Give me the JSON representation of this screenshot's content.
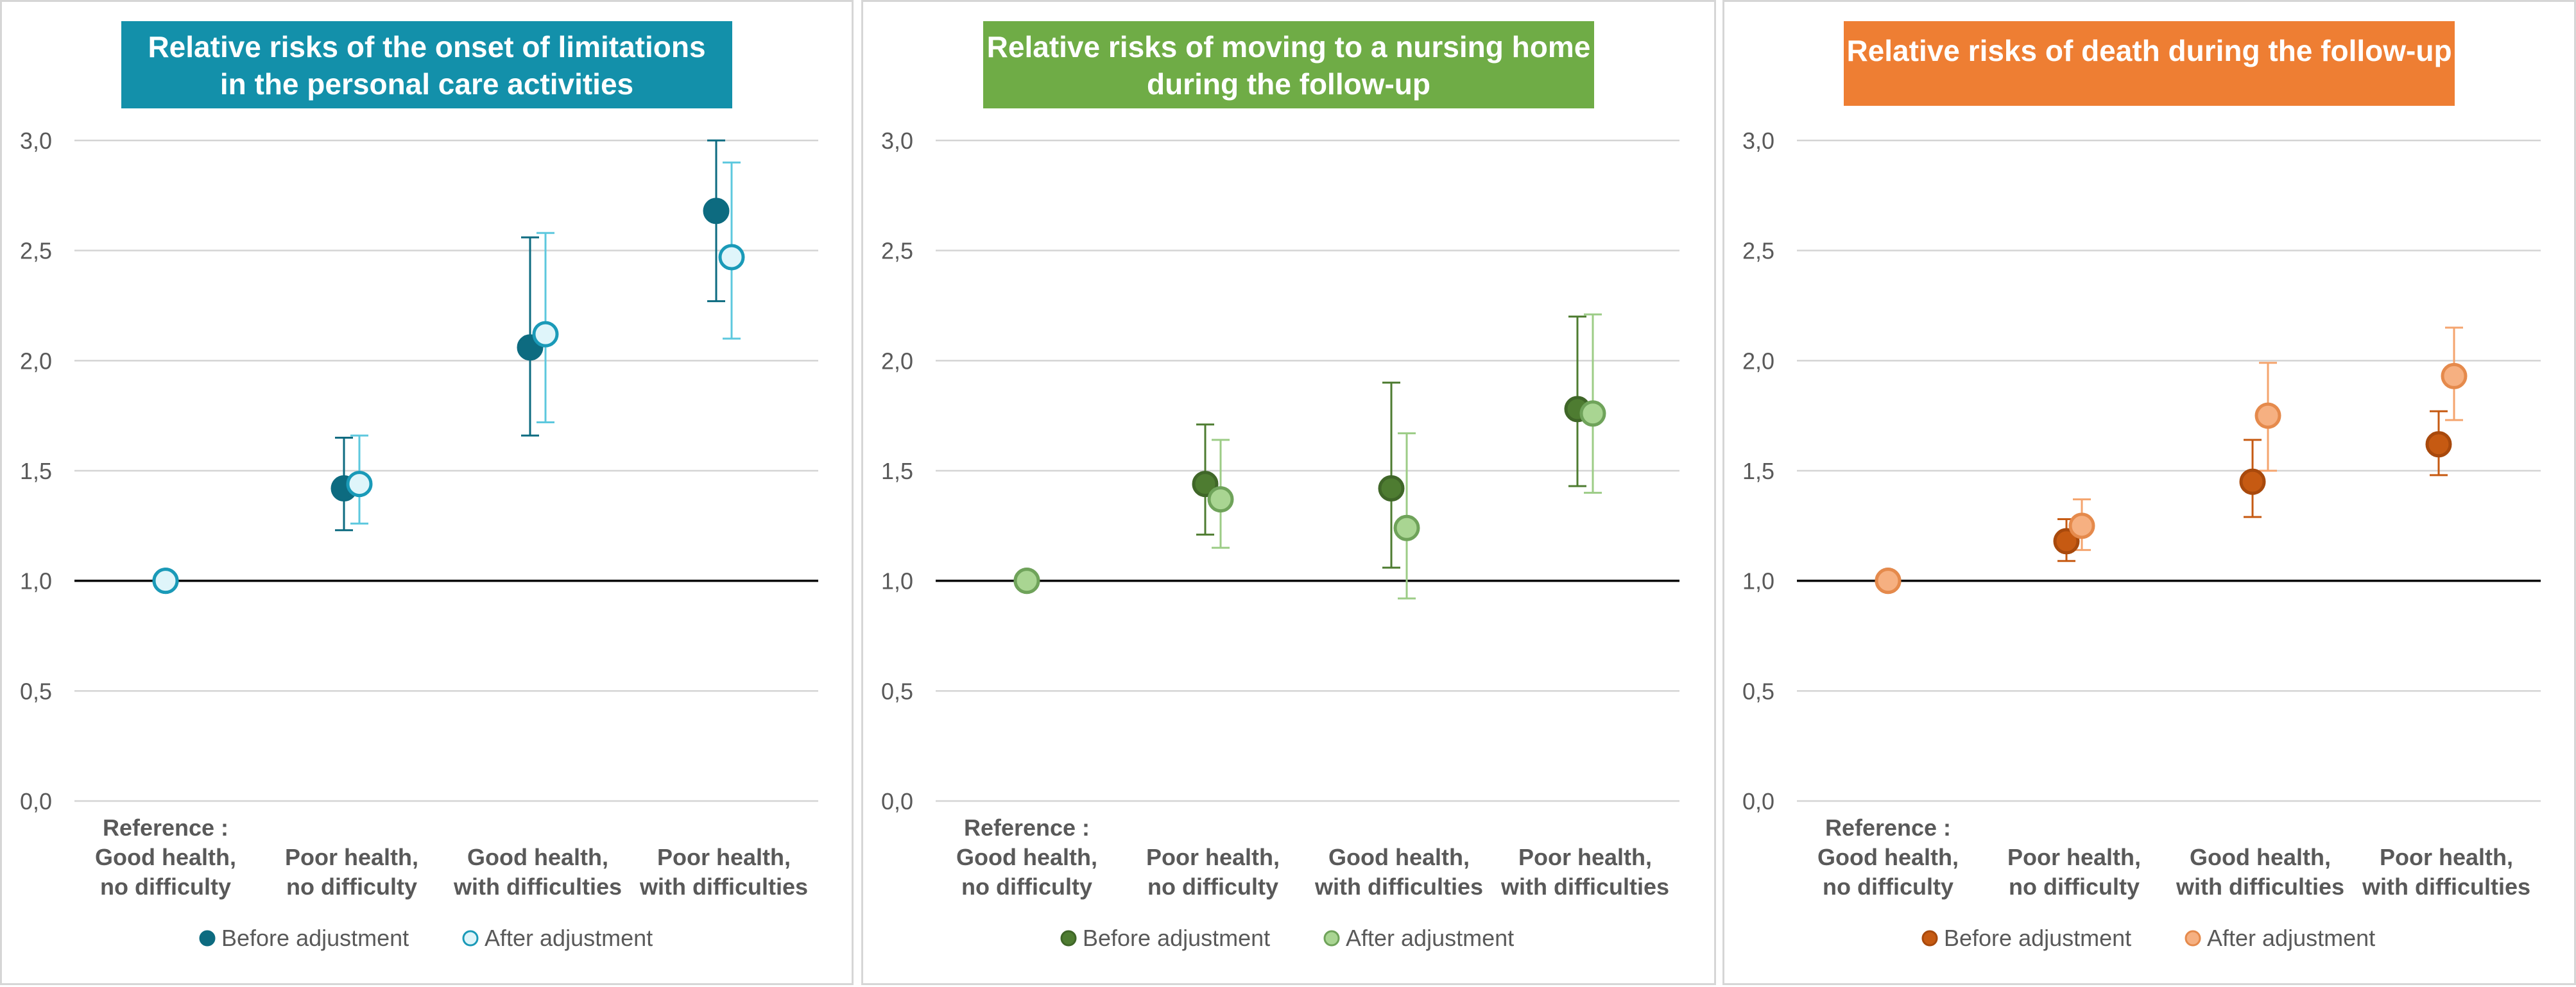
{
  "chart_data": [
    {
      "type": "scatter",
      "title_lines": [
        "Relative risks of the onset of limitations",
        "in the personal care activities"
      ],
      "title_bg": "#1390aa",
      "categories": [
        [
          "Reference :",
          "Good health,",
          "no difficulty"
        ],
        [
          "Poor health,",
          "no difficulty"
        ],
        [
          "Good health,",
          "with difficulties"
        ],
        [
          "Poor health,",
          "with difficulties"
        ]
      ],
      "y_ticks": [
        "0,0",
        "0,5",
        "1,0",
        "1,5",
        "2,0",
        "2,5",
        "3,0"
      ],
      "ylim": [
        0,
        3
      ],
      "reference_line": 1.0,
      "series": [
        {
          "name": "Before adjustment",
          "color": "#0d6b80",
          "fill": "#0d6b80",
          "stroke": "#0d6b80",
          "values": [
            1.0,
            1.42,
            2.06,
            2.68
          ],
          "lower": [
            null,
            1.23,
            1.66,
            2.27
          ],
          "upper": [
            null,
            1.65,
            2.56,
            3.0
          ]
        },
        {
          "name": "After adjustment",
          "color": "#5dc8de",
          "fill": "#dff5fa",
          "stroke": "#1a9ab8",
          "values": [
            1.0,
            1.44,
            2.12,
            2.47
          ],
          "lower": [
            null,
            1.26,
            1.72,
            2.1
          ],
          "upper": [
            null,
            1.66,
            2.58,
            2.9
          ]
        }
      ]
    },
    {
      "type": "scatter",
      "title_lines": [
        "Relative risks of moving to a nursing home",
        "during the follow-up"
      ],
      "title_bg": "#6fac46",
      "categories": [
        [
          "Reference :",
          "Good health,",
          "no difficulty"
        ],
        [
          "Poor health,",
          "no difficulty"
        ],
        [
          "Good health,",
          "with difficulties"
        ],
        [
          "Poor health,",
          "with difficulties"
        ]
      ],
      "y_ticks": [
        "0,0",
        "0,5",
        "1,0",
        "1,5",
        "2,0",
        "2,5",
        "3,0"
      ],
      "ylim": [
        0,
        3
      ],
      "reference_line": 1.0,
      "series": [
        {
          "name": "Before adjustment",
          "color": "#4e7c31",
          "fill": "#4e7c31",
          "stroke": "#3f6628",
          "values": [
            1.0,
            1.44,
            1.42,
            1.78
          ],
          "lower": [
            null,
            1.21,
            1.06,
            1.43
          ],
          "upper": [
            null,
            1.71,
            1.9,
            2.2
          ]
        },
        {
          "name": "After adjustment",
          "color": "#9ccc86",
          "fill": "#a9d592",
          "stroke": "#6fa35a",
          "values": [
            1.0,
            1.37,
            1.24,
            1.76
          ],
          "lower": [
            null,
            1.15,
            0.92,
            1.4
          ],
          "upper": [
            null,
            1.64,
            1.67,
            2.21
          ]
        }
      ]
    },
    {
      "type": "scatter",
      "title_lines": [
        "Relative risks of death during the follow-up"
      ],
      "title_bg": "#ee7e33",
      "categories": [
        [
          "Reference :",
          "Good health,",
          "no difficulty"
        ],
        [
          "Poor health,",
          "no difficulty"
        ],
        [
          "Good health,",
          "with difficulties"
        ],
        [
          "Poor health,",
          "with difficulties"
        ]
      ],
      "y_ticks": [
        "0,0",
        "0,5",
        "1,0",
        "1,5",
        "2,0",
        "2,5",
        "3,0"
      ],
      "ylim": [
        0,
        3
      ],
      "reference_line": 1.0,
      "series": [
        {
          "name": "Before adjustment",
          "color": "#c65a12",
          "fill": "#c65a12",
          "stroke": "#a8490c",
          "values": [
            1.0,
            1.18,
            1.45,
            1.62
          ],
          "lower": [
            null,
            1.09,
            1.29,
            1.48
          ],
          "upper": [
            null,
            1.28,
            1.64,
            1.77
          ]
        },
        {
          "name": "After adjustment",
          "color": "#f4a46e",
          "fill": "#f6b081",
          "stroke": "#e58a4c",
          "values": [
            1.0,
            1.25,
            1.75,
            1.93
          ],
          "lower": [
            null,
            1.14,
            1.5,
            1.73
          ],
          "upper": [
            null,
            1.37,
            1.99,
            2.15
          ]
        }
      ]
    }
  ]
}
